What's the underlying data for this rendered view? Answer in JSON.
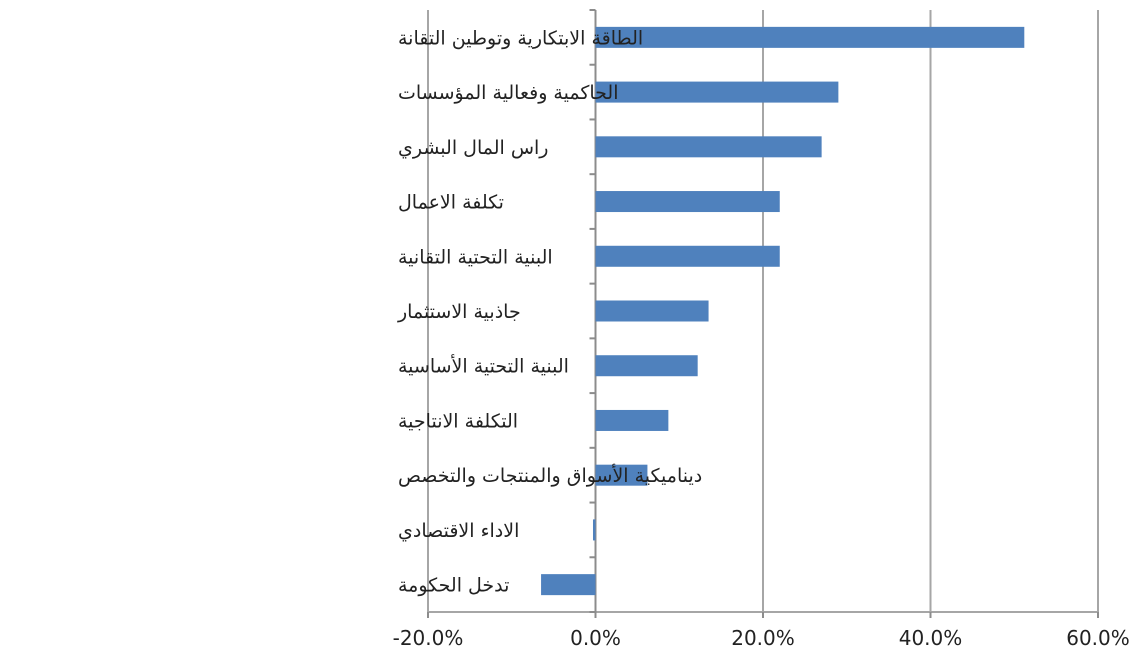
{
  "chart_data": {
    "type": "bar",
    "orientation": "horizontal",
    "title": "",
    "xlabel": "",
    "ylabel": "",
    "categories": [
      "الطاقة الابتكارية وتوطين التقانة",
      "الحاكمية وفعالية المؤسسات",
      "راس المال البشري",
      "تكلفة الاعمال",
      "البنية التحتية التقانية",
      "جاذبية الاستثمار",
      "البنية التحتية الأساسية",
      "التكلفة الانتاجية",
      "ديناميكية الأسواق والمنتجات والتخصص",
      "الاداء الاقتصادي",
      "تدخل الحكومة"
    ],
    "values": [
      51.2,
      29.0,
      27.0,
      22.0,
      22.0,
      13.5,
      12.2,
      8.7,
      6.2,
      -0.3,
      -6.5
    ],
    "xlim": [
      -20,
      60
    ],
    "xticks": [
      -20,
      0,
      20,
      40,
      60
    ],
    "xtick_labels": [
      "-20.0%",
      "0.0%",
      "20.0%",
      "40.0%",
      "60.0%"
    ],
    "grid": true,
    "legend": "none",
    "bar_color": "#4f81bd",
    "grid_color": "#a6a6a6"
  }
}
